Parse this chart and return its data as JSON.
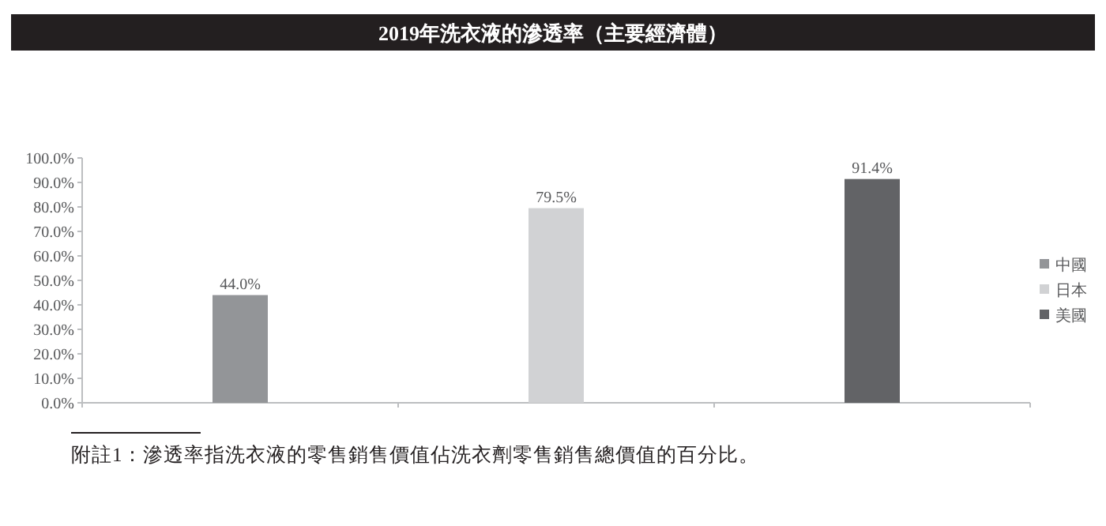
{
  "chart_data": {
    "type": "bar",
    "title": "2019年洗衣液的滲透率（主要經濟體）",
    "categories": [
      null,
      null,
      null
    ],
    "series": [
      {
        "name": "中國",
        "color": "#939598",
        "values": [
          44.0,
          null,
          null
        ],
        "value_labels": [
          "44.0%",
          null,
          null
        ]
      },
      {
        "name": "日本",
        "color": "#d1d2d4",
        "values": [
          null,
          79.5,
          null
        ],
        "value_labels": [
          null,
          "79.5%",
          null
        ]
      },
      {
        "name": "美國",
        "color": "#626366",
        "values": [
          null,
          null,
          91.4
        ],
        "value_labels": [
          null,
          null,
          "91.4%"
        ]
      }
    ],
    "ylim": [
      0,
      100
    ],
    "yticks": [
      {
        "value": 0,
        "label": "0.0%"
      },
      {
        "value": 10,
        "label": "10.0%"
      },
      {
        "value": 20,
        "label": "20.0%"
      },
      {
        "value": 30,
        "label": "30.0%"
      },
      {
        "value": 40,
        "label": "40.0%"
      },
      {
        "value": 50,
        "label": "50.0%"
      },
      {
        "value": 60,
        "label": "60.0%"
      },
      {
        "value": 70,
        "label": "70.0%"
      },
      {
        "value": 80,
        "label": "80.0%"
      },
      {
        "value": 90,
        "label": "90.0%"
      },
      {
        "value": 100,
        "label": "100.0%"
      }
    ],
    "legend": "right",
    "grid": false,
    "annotations": [
      "附註1：滲透率指洗衣液的零售銷售價值佔洗衣劑零售銷售總價值的百分比。"
    ]
  }
}
